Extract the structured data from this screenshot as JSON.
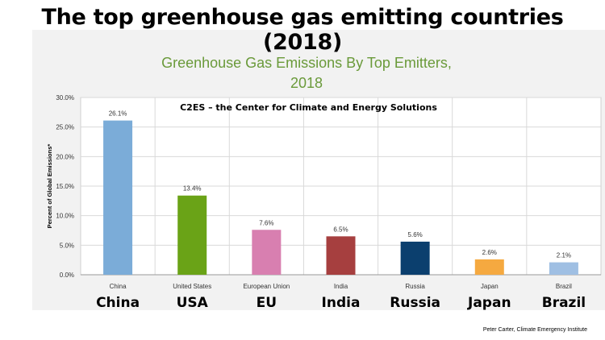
{
  "slide": {
    "title": "The top greenhouse gas emitting countries (2018)",
    "big_labels": [
      "China",
      "USA",
      "EU",
      "India",
      "Russia",
      "Japan",
      "Brazil"
    ],
    "credit": "Peter Carter, Climate Emergency Institute"
  },
  "chart_data": {
    "type": "bar",
    "title_line1": "Greenhouse Gas Emissions By Top Emitters,",
    "title_line2": "2018",
    "subtitle": "C2ES – the Center for Climate and Energy Solutions",
    "ylabel": "Percent of Global Emissions*",
    "xlabel": "",
    "categories": [
      "China",
      "United States",
      "European Union",
      "India",
      "Russia",
      "Japan",
      "Brazil"
    ],
    "values": [
      26.1,
      13.4,
      7.6,
      6.5,
      5.6,
      2.6,
      2.1
    ],
    "value_labels": [
      "26.1%",
      "13.4%",
      "7.6%",
      "6.5%",
      "5.6%",
      "2.6%",
      "2.1%"
    ],
    "colors": [
      "#7bacd8",
      "#6aa317",
      "#d87fb0",
      "#a63f3f",
      "#0b3f6e",
      "#f5a940",
      "#9fbfe3"
    ],
    "yticks": [
      0,
      5,
      10,
      15,
      20,
      25,
      30
    ],
    "ytick_labels": [
      "0.0%",
      "5.0%",
      "10.0%",
      "15.0%",
      "20.0%",
      "25.0%",
      "30.0%"
    ],
    "ylim": [
      0,
      30
    ],
    "grid": true,
    "title_color": "#6a9a3a"
  }
}
